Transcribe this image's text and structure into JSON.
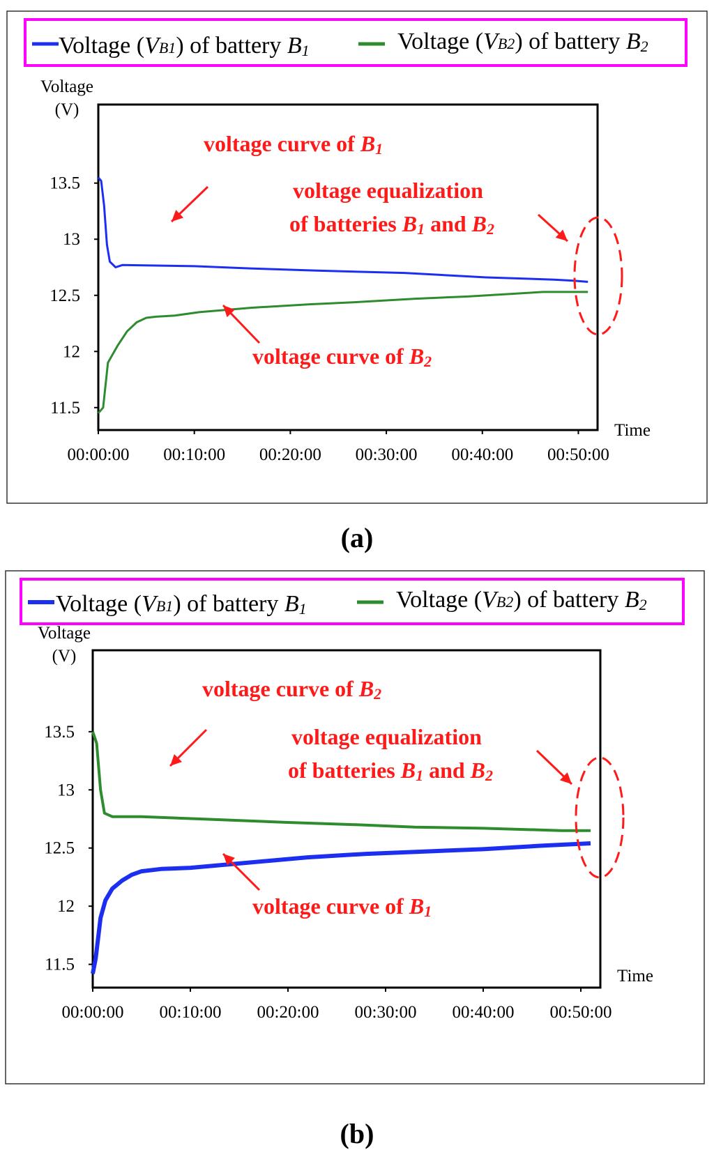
{
  "panels": [
    {
      "id": "a",
      "caption": "(a)",
      "legend": {
        "series1": {
          "prefix": "Voltage (",
          "var_main": "V",
          "var_sub": "B1",
          "mid": ") of battery ",
          "bat_main": "B",
          "bat_sub": "1",
          "color": "#1c2ff0"
        },
        "series2": {
          "prefix": "Voltage (",
          "var_main": "V",
          "var_sub": "B2",
          "mid": ") of battery ",
          "bat_main": "B",
          "bat_sub": "2",
          "color": "#2e8b2e"
        },
        "border_color": "#ff00ff"
      },
      "annotations": {
        "top_curve": {
          "text": "voltage curve of ",
          "bat_main": "B",
          "bat_sub": "1"
        },
        "bottom_curve": {
          "text": "voltage curve of ",
          "bat_main": "B",
          "bat_sub": "2"
        },
        "equalization_line1": "voltage equalization",
        "equalization_line2": {
          "text": "of batteries ",
          "b1_main": "B",
          "b1_sub": "1",
          "and": " and ",
          "b2_main": "B",
          "b2_sub": "2"
        },
        "color": "#ff1a1a"
      }
    },
    {
      "id": "b",
      "caption": "(b)",
      "legend": {
        "series1": {
          "prefix": "Voltage (",
          "var_main": "V",
          "var_sub": "B1",
          "mid": ") of battery ",
          "bat_main": "B",
          "bat_sub": "1",
          "color": "#1c2ff0"
        },
        "series2": {
          "prefix": "Voltage (",
          "var_main": "V",
          "var_sub": "B2",
          "mid": ") of battery ",
          "bat_main": "B",
          "bat_sub": "2",
          "color": "#2e8b2e"
        },
        "border_color": "#ff00ff"
      },
      "annotations": {
        "top_curve": {
          "text": "voltage curve of ",
          "bat_main": "B",
          "bat_sub": "2"
        },
        "bottom_curve": {
          "text": "voltage curve of ",
          "bat_main": "B",
          "bat_sub": "1"
        },
        "equalization_line1": "voltage equalization",
        "equalization_line2": {
          "text": "of batteries ",
          "b1_main": "B",
          "b1_sub": "1",
          "and": " and ",
          "b2_main": "B",
          "b2_sub": "2"
        },
        "color": "#ff1a1a"
      }
    }
  ],
  "chart_data": [
    {
      "type": "line",
      "panel": "a",
      "ylabel_line1": "Voltage",
      "ylabel_line2": "(V)",
      "xlabel": "Time",
      "ylim": [
        11.3,
        14.2
      ],
      "xlim_minutes": [
        0,
        52
      ],
      "yticks": [
        11.5,
        12,
        12.5,
        13,
        13.5
      ],
      "ytick_labels": [
        "11.5",
        "12",
        "12.5",
        "13",
        "13.5"
      ],
      "xticks_minutes": [
        0,
        10,
        20,
        30,
        40,
        50
      ],
      "xtick_labels": [
        "00:00:00",
        "00:10:00",
        "00:20:00",
        "00:30:00",
        "00:40:00",
        "00:50:00"
      ],
      "series": [
        {
          "name": "VB1",
          "color": "#1c2ff0",
          "width": 3,
          "x": [
            0,
            0.3,
            0.6,
            0.9,
            1.2,
            1.8,
            2.5,
            10,
            15.8,
            22.8,
            31.9,
            40.4,
            47.5,
            49.5,
            51
          ],
          "y": [
            13.55,
            13.52,
            13.3,
            12.95,
            12.8,
            12.75,
            12.77,
            12.76,
            12.74,
            12.72,
            12.7,
            12.66,
            12.64,
            12.63,
            12.62
          ]
        },
        {
          "name": "VB2",
          "color": "#2e8b2e",
          "width": 3,
          "x": [
            0,
            0.5,
            1,
            2,
            3,
            4,
            5,
            6,
            8,
            10.5,
            16,
            22,
            27,
            33,
            38.5,
            46.3,
            51
          ],
          "y": [
            11.45,
            11.5,
            11.9,
            12.05,
            12.18,
            12.26,
            12.3,
            12.31,
            12.32,
            12.35,
            12.39,
            12.42,
            12.44,
            12.47,
            12.49,
            12.53,
            12.53
          ]
        }
      ]
    },
    {
      "type": "line",
      "panel": "b",
      "ylabel_line1": "Voltage",
      "ylabel_line2": "(V)",
      "xlabel": "Time",
      "ylim": [
        11.3,
        14.2
      ],
      "xlim_minutes": [
        0,
        52
      ],
      "yticks": [
        11.5,
        12,
        12.5,
        13,
        13.5
      ],
      "ytick_labels": [
        "11.5",
        "12",
        "12.5",
        "13",
        "13.5"
      ],
      "xticks_minutes": [
        0,
        10,
        20,
        30,
        40,
        50
      ],
      "xtick_labels": [
        "00:00:00",
        "00:10:00",
        "00:20:00",
        "00:30:00",
        "00:40:00",
        "00:50:00"
      ],
      "series": [
        {
          "name": "VB2",
          "color": "#2e8b2e",
          "width": 4,
          "x": [
            0,
            0.4,
            0.8,
            1.2,
            2,
            5,
            11,
            20,
            27,
            33,
            40,
            48,
            51
          ],
          "y": [
            13.5,
            13.4,
            13.0,
            12.8,
            12.77,
            12.77,
            12.75,
            12.72,
            12.7,
            12.68,
            12.67,
            12.65,
            12.65
          ]
        },
        {
          "name": "VB1",
          "color": "#1c2ff0",
          "width": 6,
          "x": [
            0,
            0.3,
            0.8,
            1.3,
            2,
            3,
            4,
            5,
            7,
            10,
            14,
            18,
            22,
            28,
            34,
            40,
            46,
            51
          ],
          "y": [
            11.42,
            11.55,
            11.9,
            12.05,
            12.15,
            12.22,
            12.27,
            12.3,
            12.32,
            12.33,
            12.36,
            12.39,
            12.42,
            12.45,
            12.47,
            12.49,
            12.52,
            12.54
          ]
        }
      ]
    }
  ]
}
